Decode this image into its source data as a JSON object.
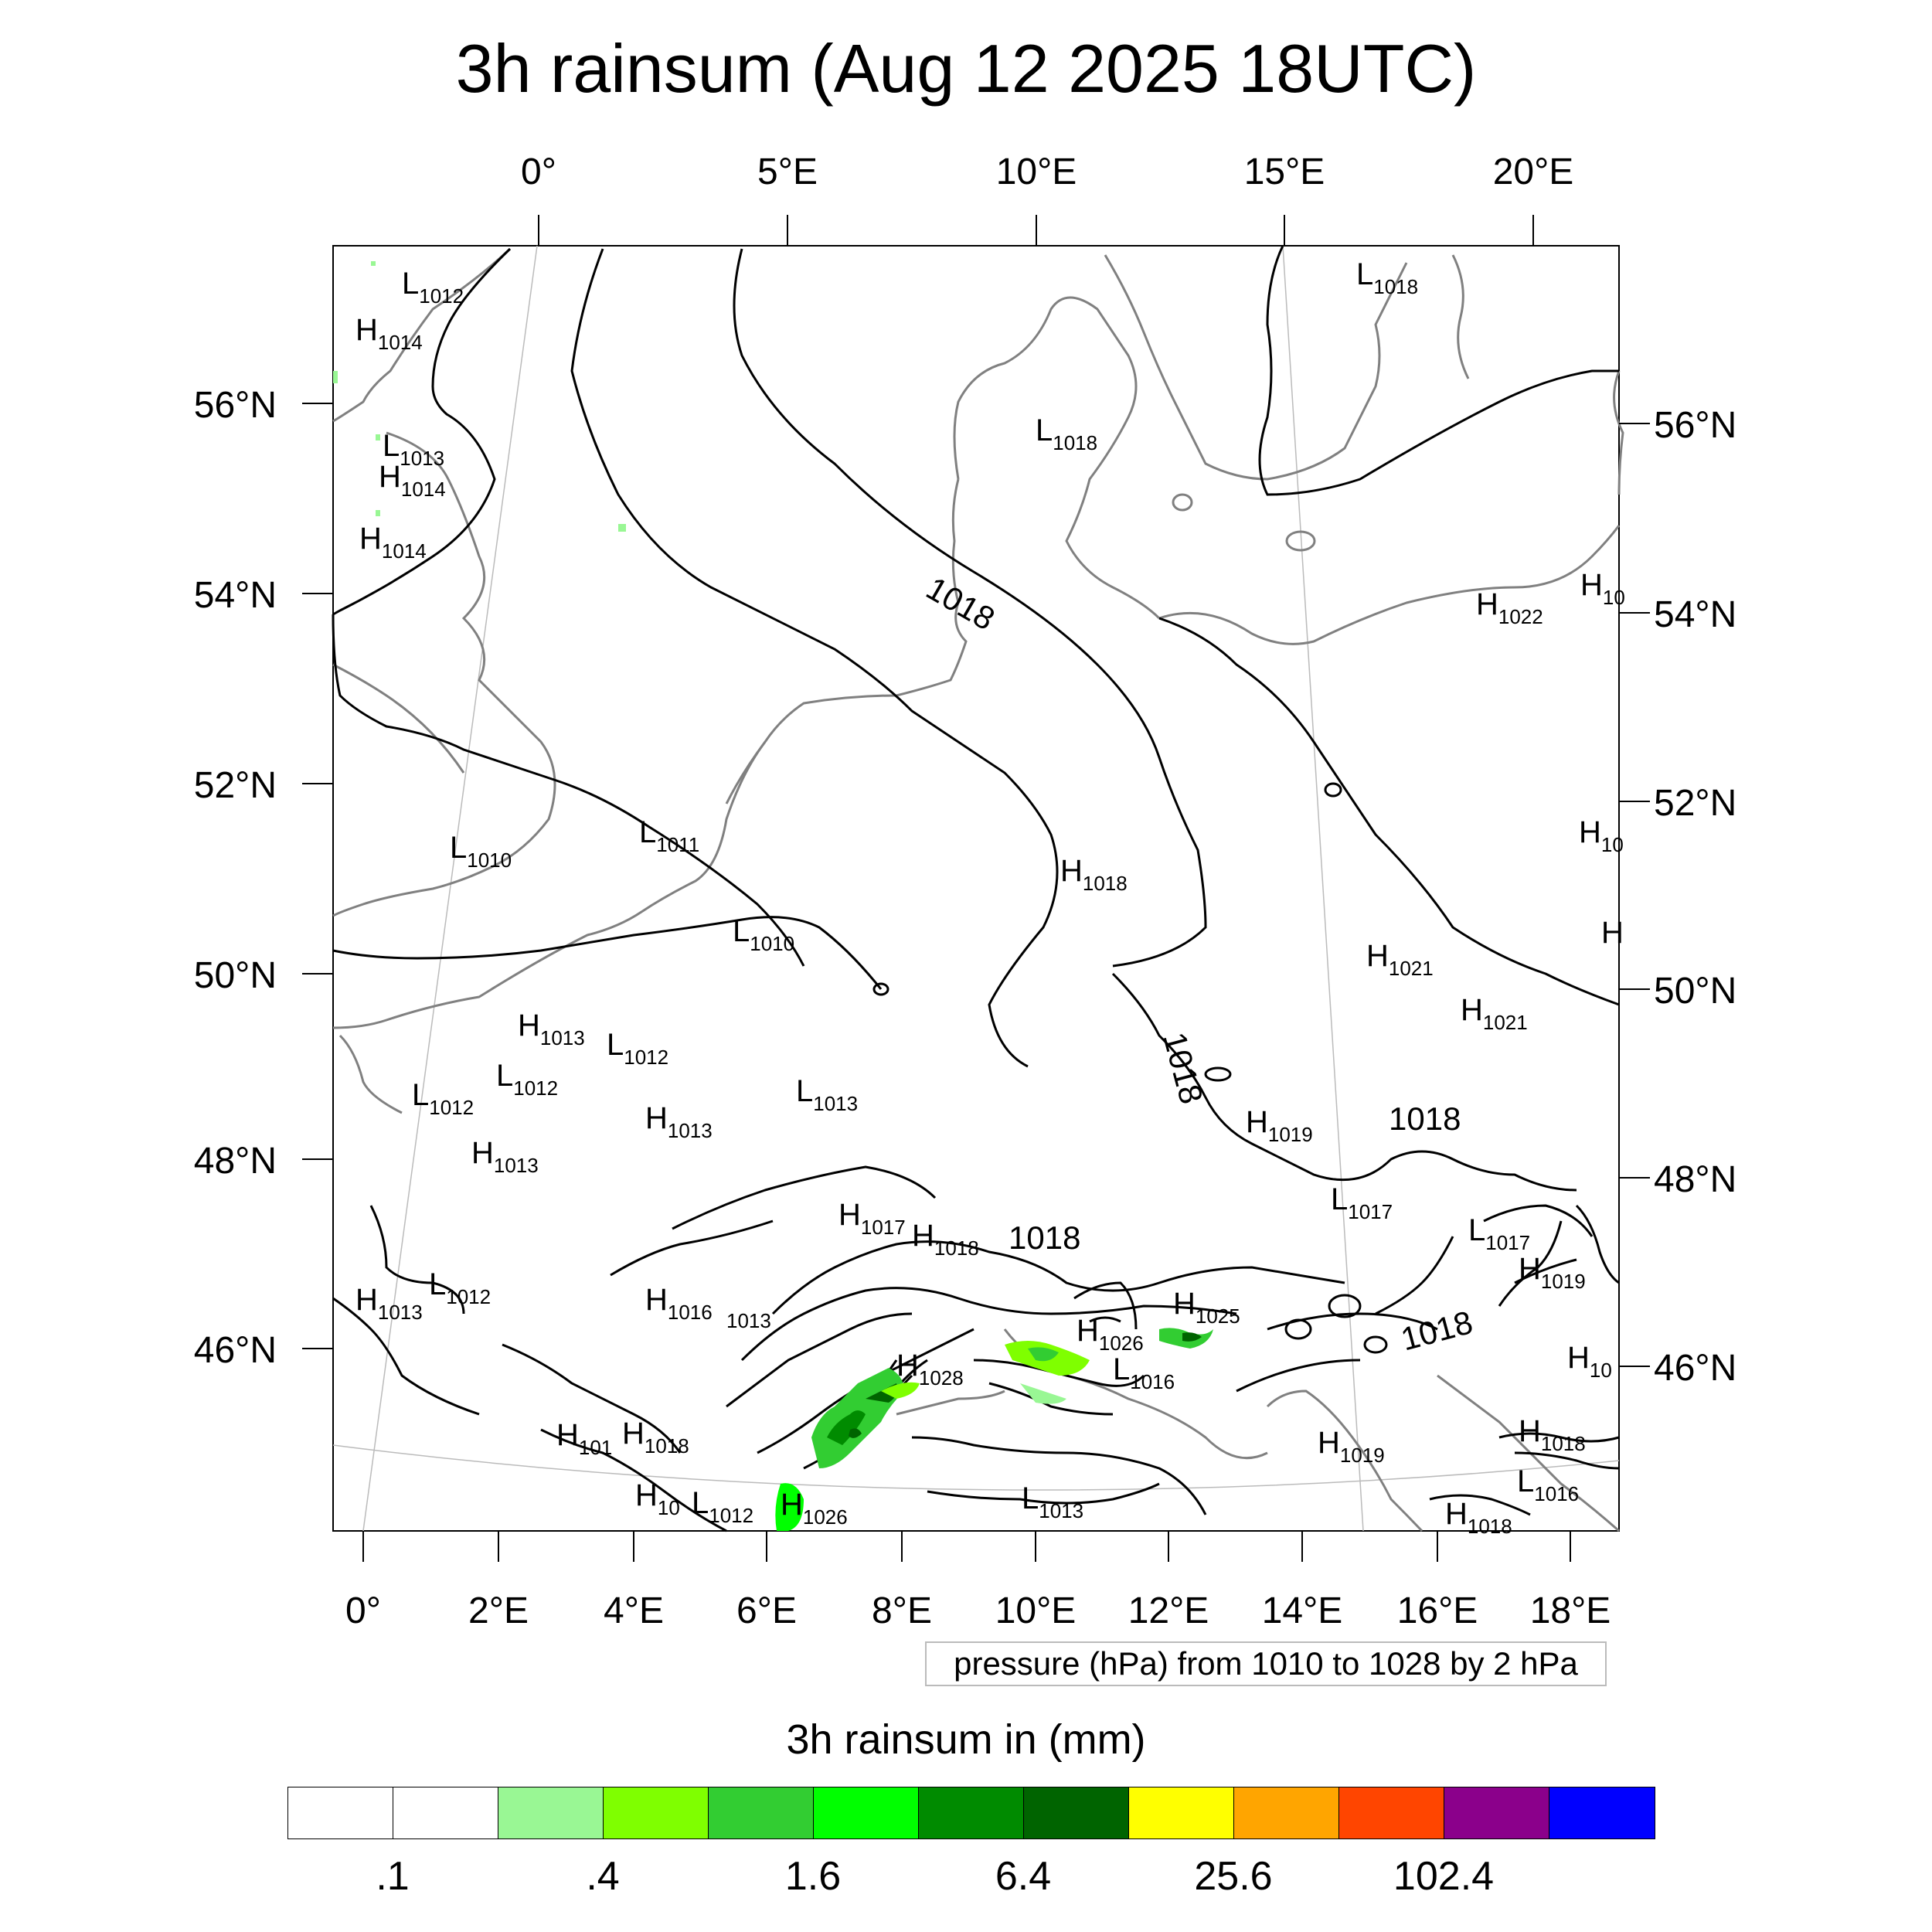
{
  "title": "3h rainsum (Aug 12 2025 18UTC)",
  "top_lon_labels": [
    "0°",
    "5°E",
    "10°E",
    "15°E",
    "20°E"
  ],
  "bottom_lon_labels": [
    "0°",
    "2°E",
    "4°E",
    "6°E",
    "8°E",
    "10°E",
    "12°E",
    "14°E",
    "16°E",
    "18°E"
  ],
  "left_lat_labels": [
    "56°N",
    "54°N",
    "52°N",
    "50°N",
    "48°N",
    "46°N"
  ],
  "right_lat_labels": [
    "56°N",
    "54°N",
    "52°N",
    "50°N",
    "48°N",
    "46°N"
  ],
  "pressure_note": "pressure (hPa) from 1010 to 1028 by 2 hPa",
  "legend": {
    "title": "3h rainsum in (mm)",
    "colors": [
      "#ffffff",
      "#ffffff",
      "#99f794",
      "#7fff00",
      "#32cd32",
      "#00ff00",
      "#008b00",
      "#006400",
      "#ffff00",
      "#ffa500",
      "#ff4500",
      "#8b008b",
      "#0000ff"
    ],
    "tick_labels": [
      ".1",
      ".4",
      "1.6",
      "6.4",
      "25.6",
      "102.4"
    ]
  },
  "contour_labels": [
    "1018",
    "1018",
    "1018",
    "1018",
    "1018"
  ],
  "pressure_systems": [
    {
      "type": "L",
      "value": "1012"
    },
    {
      "type": "H",
      "value": "1014"
    },
    {
      "type": "L",
      "value": "1013"
    },
    {
      "type": "H",
      "value": "1014"
    },
    {
      "type": "H",
      "value": "1014"
    },
    {
      "type": "L",
      "value": "1018"
    },
    {
      "type": "L",
      "value": "1018"
    },
    {
      "type": "H",
      "value": "1022"
    },
    {
      "type": "H",
      "value": "10"
    },
    {
      "type": "L",
      "value": "1010"
    },
    {
      "type": "L",
      "value": "1011"
    },
    {
      "type": "L",
      "value": "1010"
    },
    {
      "type": "H",
      "value": "1018"
    },
    {
      "type": "H",
      "value": "10"
    },
    {
      "type": "H",
      "value": ""
    },
    {
      "type": "H",
      "value": "1021"
    },
    {
      "type": "H",
      "value": "1021"
    },
    {
      "type": "H",
      "value": "1013"
    },
    {
      "type": "L",
      "value": "1012"
    },
    {
      "type": "L",
      "value": "1012"
    },
    {
      "type": "L",
      "value": "1012"
    },
    {
      "type": "H",
      "value": "1013"
    },
    {
      "type": "L",
      "value": "1013"
    },
    {
      "type": "H",
      "value": "1013"
    },
    {
      "type": "H",
      "value": "1019"
    },
    {
      "type": "L",
      "value": "1017"
    },
    {
      "type": "L",
      "value": "1017"
    },
    {
      "type": "H",
      "value": "1019"
    },
    {
      "type": "H",
      "value": "1017"
    },
    {
      "type": "H",
      "value": "1018"
    },
    {
      "type": "H",
      "value": "1013"
    },
    {
      "type": "L",
      "value": "1012"
    },
    {
      "type": "H",
      "value": "1016"
    },
    {
      "type": "H",
      "value": "1025"
    },
    {
      "type": "H",
      "value": "1026"
    },
    {
      "type": "H",
      "value": "1028"
    },
    {
      "type": "L",
      "value": "1016"
    },
    {
      "type": "H",
      "value": "10"
    },
    {
      "type": "H",
      "value": "101"
    },
    {
      "type": "H",
      "value": "1018"
    },
    {
      "type": "H",
      "value": "1019"
    },
    {
      "type": "H",
      "value": "1018"
    },
    {
      "type": "L",
      "value": "1016"
    },
    {
      "type": "H",
      "value": "10"
    },
    {
      "type": "L",
      "value": "1012"
    },
    {
      "type": "H",
      "value": "1026"
    },
    {
      "type": "L",
      "value": "1013"
    },
    {
      "type": "H",
      "value": "1018"
    }
  ],
  "stray_contour_label": "1013"
}
